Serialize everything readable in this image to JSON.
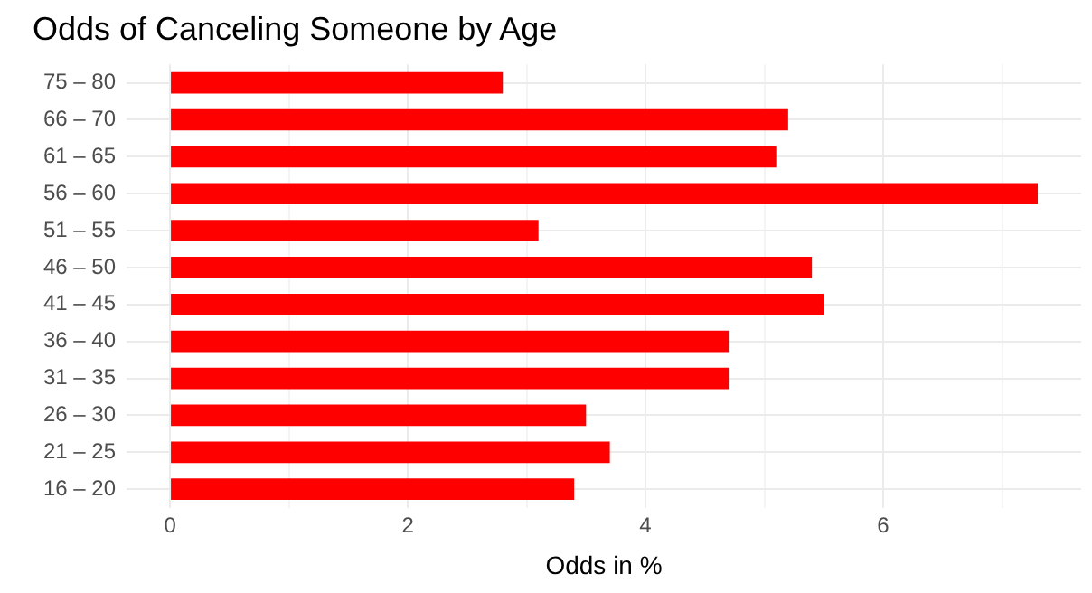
{
  "chart_data": {
    "type": "bar",
    "orientation": "horizontal",
    "title": "Odds of Canceling Someone by Age",
    "xlabel": "Odds in %",
    "categories": [
      "75 – 80",
      "66 – 70",
      "61 – 65",
      "56 – 60",
      "51 – 55",
      "46 – 50",
      "41 – 45",
      "36 – 40",
      "31 – 35",
      "26 – 30",
      "21 – 25",
      "16 – 20"
    ],
    "values": [
      2.8,
      5.2,
      5.1,
      7.3,
      3.1,
      5.4,
      5.5,
      4.7,
      4.7,
      3.5,
      3.7,
      3.4
    ],
    "color": "#ff0000",
    "xlim": [
      -0.365,
      7.665
    ],
    "xticks": [
      0,
      {
        "value": 1,
        "label": null
      },
      2,
      {
        "value": 3,
        "label": null
      },
      4,
      {
        "value": 5,
        "label": null
      },
      6,
      {
        "value": 7,
        "label": null
      }
    ],
    "grid": true,
    "legend": false
  }
}
